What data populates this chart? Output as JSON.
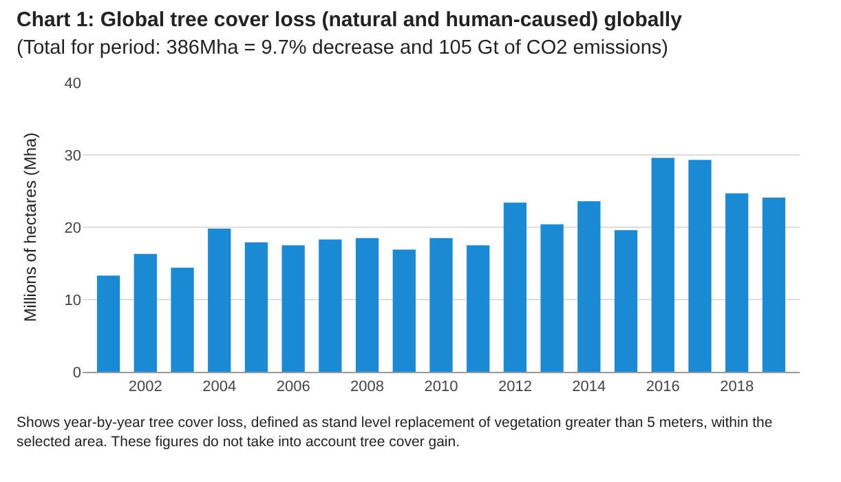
{
  "chart_data": {
    "type": "bar",
    "title": "Chart 1: Global tree cover loss (natural and human-caused) globally",
    "subtitle": "(Total for period: 386Mha = 9.7% decrease and 105 Gt of CO2 emissions)",
    "ylabel": "Millions of hectares (Mha)",
    "x": [
      2001,
      2002,
      2003,
      2004,
      2005,
      2006,
      2007,
      2008,
      2009,
      2010,
      2011,
      2012,
      2013,
      2014,
      2015,
      2016,
      2017,
      2018,
      2019
    ],
    "values": [
      13.3,
      16.3,
      14.4,
      19.8,
      17.9,
      17.5,
      18.3,
      18.5,
      16.9,
      18.5,
      17.5,
      23.4,
      20.4,
      23.6,
      19.6,
      29.6,
      29.3,
      24.7,
      24.1
    ],
    "color": "#1a8ad4",
    "xlim": [
      2000.3,
      2019.7
    ],
    "xticks": [
      2002,
      2004,
      2006,
      2008,
      2010,
      2012,
      2014,
      2016,
      2018
    ],
    "ylim": [
      0,
      40
    ],
    "yticks": [
      0,
      10,
      20,
      30,
      40
    ],
    "grid": "y",
    "annotations": [
      "Shows year-by-year tree cover loss, defined as stand level replacement of vegetation greater than 5 meters, within the selected area. These figures do not take into account tree cover gain."
    ]
  }
}
